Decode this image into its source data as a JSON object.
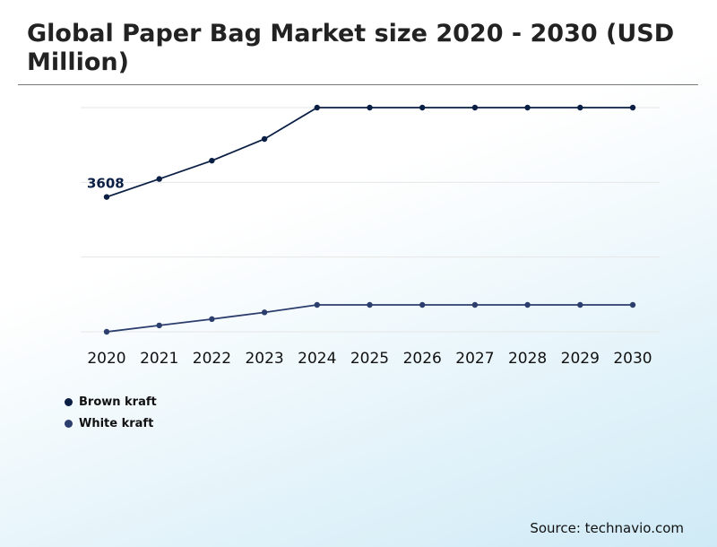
{
  "title": "Global Paper Bag Market size 2020 - 2030 (USD Million)",
  "source": "Source: technavio.com",
  "colors": {
    "brown_kraft": "#0b1f45",
    "white_kraft": "#2c3e6e",
    "grid": "#e6e6e6",
    "rule": "#777777"
  },
  "chart_data": {
    "type": "line",
    "title": "Global Paper Bag Market size 2020 - 2030 (USD Million)",
    "xlabel": "",
    "ylabel": "",
    "x": [
      "2020",
      "2021",
      "2022",
      "2023",
      "2024",
      "2025",
      "2026",
      "2027",
      "2028",
      "2029",
      "2030"
    ],
    "ylim": [
      0,
      6000
    ],
    "grid": true,
    "legend_position": "bottom-left",
    "series": [
      {
        "name": "Brown kraft",
        "color": "#0b1f45",
        "values": [
          3608,
          4090,
          4580,
          5160,
          6000,
          6000,
          6000,
          6000,
          6000,
          6000,
          6000
        ]
      },
      {
        "name": "White kraft",
        "color": "#2c3e6e",
        "values": [
          0,
          170,
          340,
          520,
          720,
          720,
          720,
          720,
          720,
          720,
          720
        ]
      }
    ],
    "annotations": [
      {
        "series": "Brown kraft",
        "x": "2020",
        "label": "3608"
      }
    ]
  }
}
